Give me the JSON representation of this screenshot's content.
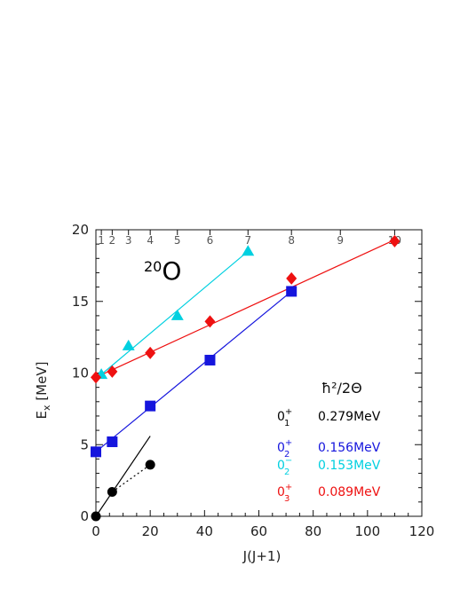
{
  "chart_data": {
    "type": "scatter",
    "xlabel": "J(J+1)",
    "ylabel_main": "E",
    "ylabel_sub": "x",
    "ylabel_unit": "[MeV]",
    "xlim": [
      0,
      120
    ],
    "ylim": [
      0,
      20
    ],
    "x_ticks": [
      0,
      20,
      40,
      60,
      80,
      100,
      120
    ],
    "y_ticks": [
      0,
      5,
      10,
      15,
      20
    ],
    "top_ticks": [
      1,
      2,
      3,
      4,
      5,
      6,
      7,
      8,
      9,
      10
    ],
    "nucleus": {
      "mass": "20",
      "symbol": "O"
    },
    "legend_header": "ħ²/2Θ",
    "grid": false,
    "series": [
      {
        "key": "01p",
        "label_main": "0",
        "label_sub": "1",
        "label_sup": "+",
        "value": "0.279MeV",
        "color": "#000000",
        "marker": "circle",
        "x": [
          0,
          6,
          20
        ],
        "y": [
          0.0,
          1.7,
          3.6
        ],
        "fit": [
          [
            0,
            0.0
          ],
          [
            20,
            5.6
          ]
        ],
        "dotted_connector": true
      },
      {
        "key": "02p",
        "label_main": "0",
        "label_sub": "2",
        "label_sup": "+",
        "value": "0.156MeV",
        "color": "#1515dd",
        "marker": "square",
        "x": [
          0,
          6,
          20,
          42,
          72
        ],
        "y": [
          4.5,
          5.2,
          7.7,
          10.9,
          15.7
        ],
        "fit": [
          [
            0,
            4.5
          ],
          [
            72,
            15.7
          ]
        ],
        "dotted_connector": false
      },
      {
        "key": "02m",
        "label_main": "0",
        "label_sub": "2",
        "label_sup": "−",
        "value": "0.153MeV",
        "color": "#00d0e0",
        "marker": "triangle",
        "x": [
          2,
          12,
          30,
          56
        ],
        "y": [
          9.9,
          11.9,
          14.0,
          18.5
        ],
        "fit": [
          [
            2,
            9.9
          ],
          [
            56,
            18.5
          ]
        ],
        "dotted_connector": false
      },
      {
        "key": "03p",
        "label_main": "0",
        "label_sub": "3",
        "label_sup": "+",
        "value": "0.089MeV",
        "color": "#ee1111",
        "marker": "diamond",
        "x": [
          0,
          6,
          20,
          42,
          72,
          110
        ],
        "y": [
          9.7,
          10.1,
          11.4,
          13.6,
          16.6,
          19.2
        ],
        "fit": [
          [
            0,
            9.7
          ],
          [
            110,
            19.3
          ]
        ],
        "dotted_connector": false
      }
    ]
  }
}
